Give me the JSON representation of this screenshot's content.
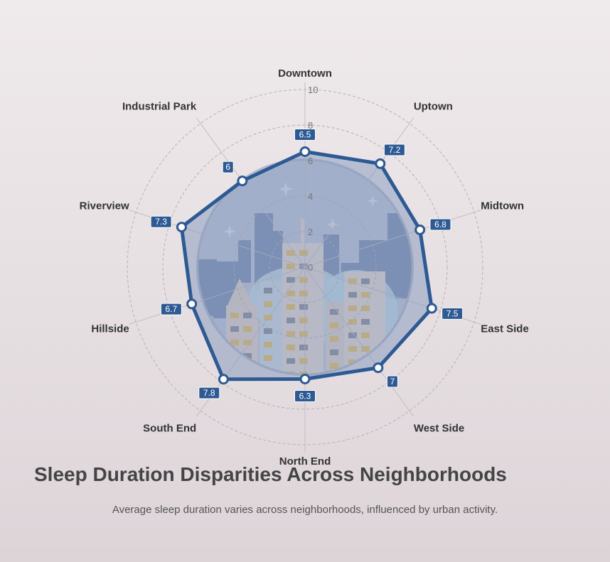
{
  "title": "Sleep Duration Disparities Across Neighborhoods",
  "subtitle": "Average sleep duration varies across neighborhoods, influenced by urban activity.",
  "colors": {
    "series_line": "#2e5a94",
    "series_fill": "#7a90b8",
    "point_fill": "#ffffff",
    "label_bg": "#2e5a94",
    "grid": "#b7b0b4",
    "spoke": "#c4bec1"
  },
  "chart_data": {
    "type": "radar",
    "categories": [
      "Downtown",
      "Uptown",
      "Midtown",
      "East Side",
      "West Side",
      "North End",
      "South End",
      "Hillside",
      "Riverview",
      "Industrial Park"
    ],
    "series": [
      {
        "values": [
          6.5,
          7.2,
          6.8,
          7.5,
          7,
          6.3,
          7.8,
          6.7,
          7.3,
          6
        ]
      }
    ],
    "rlim": [
      0,
      10
    ],
    "ticks": [
      0,
      2,
      4,
      6,
      8,
      10
    ],
    "value_labels": [
      "6.5",
      "7.2",
      "6.8",
      "7.5",
      "7",
      "6.3",
      "7.8",
      "6.7",
      "7.3",
      "6"
    ],
    "grid": true,
    "background_image": "city-skyline-illustration"
  }
}
